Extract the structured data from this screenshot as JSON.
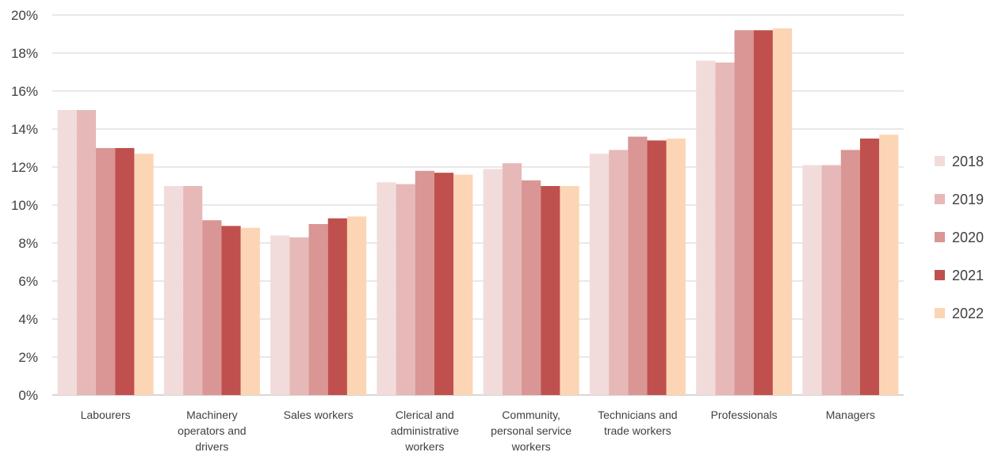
{
  "chart_data": {
    "type": "bar",
    "title": "",
    "xlabel": "",
    "ylabel": "",
    "ylim": [
      0,
      20
    ],
    "y_ticks": [
      "0%",
      "2%",
      "4%",
      "6%",
      "8%",
      "10%",
      "12%",
      "14%",
      "16%",
      "18%",
      "20%"
    ],
    "grid": true,
    "legend_position": "right",
    "categories": [
      [
        "Labourers"
      ],
      [
        "Machinery",
        "operators and",
        "drivers"
      ],
      [
        "Sales workers"
      ],
      [
        "Clerical and",
        "administrative",
        "workers"
      ],
      [
        "Community,",
        "personal service",
        "workers"
      ],
      [
        "Technicians and",
        "trade workers"
      ],
      [
        "Professionals"
      ],
      [
        "Managers"
      ]
    ],
    "series": [
      {
        "name": "2018",
        "color": "#f2dcdb",
        "values": [
          15.0,
          11.0,
          8.4,
          11.2,
          11.9,
          12.7,
          17.6,
          12.1
        ]
      },
      {
        "name": "2019",
        "color": "#e6b9b8",
        "values": [
          15.0,
          11.0,
          8.3,
          11.1,
          12.2,
          12.9,
          17.5,
          12.1
        ]
      },
      {
        "name": "2020",
        "color": "#d99694",
        "values": [
          13.0,
          9.2,
          9.0,
          11.8,
          11.3,
          13.6,
          19.2,
          12.9
        ]
      },
      {
        "name": "2021",
        "color": "#c0504d",
        "values": [
          13.0,
          8.9,
          9.3,
          11.7,
          11.0,
          13.4,
          19.2,
          13.5
        ]
      },
      {
        "name": "2022",
        "color": "#fcd5b5",
        "values": [
          12.7,
          8.8,
          9.4,
          11.6,
          11.0,
          13.5,
          19.3,
          13.7
        ]
      }
    ]
  }
}
